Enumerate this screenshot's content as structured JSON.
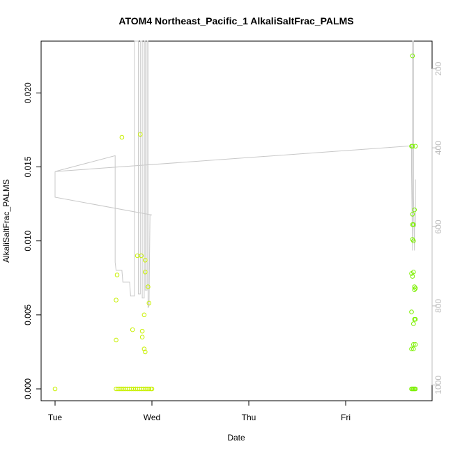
{
  "chart_data": {
    "type": "scatter",
    "title": "ATOM4 Northeast_Pacific_1 AlkaliSaltFrac_PALMS",
    "xlabel": "Date",
    "ylabel": "AlkaliSaltFrac_PALMS",
    "x_ticks": [
      "Tue",
      "Wed",
      "Thu",
      "Fri"
    ],
    "x_range_days": [
      -0.15,
      3.85
    ],
    "y_ticks": [
      "0.000",
      "0.005",
      "0.010",
      "0.015",
      "0.020"
    ],
    "ylim": [
      -0.0008,
      0.0235
    ],
    "right_axis": {
      "ticks": [
        "200",
        "400",
        "600",
        "800",
        "1000"
      ],
      "range": [
        1040,
        130
      ],
      "color": "#bdbdbd"
    },
    "colors": {
      "points_wed": "#c8f000",
      "points_fri": "#7cf000",
      "altitude_line": "#c8c8c8"
    },
    "series": [
      {
        "points": [
          [
            0.0,
            0.0
          ],
          [
            0.63,
            0.0033
          ],
          [
            0.63,
            0.006
          ],
          [
            0.64,
            0.0077
          ],
          [
            0.69,
            0.017
          ],
          [
            0.8,
            0.004
          ],
          [
            0.85,
            0.009
          ],
          [
            0.88,
            0.0172
          ],
          [
            0.89,
            0.009
          ],
          [
            0.9,
            0.0039
          ],
          [
            0.9,
            0.0035
          ],
          [
            0.92,
            0.005
          ],
          [
            0.92,
            0.0027
          ],
          [
            0.93,
            0.0025
          ],
          [
            0.93,
            0.0087
          ],
          [
            0.93,
            0.0079
          ],
          [
            0.96,
            0.0069
          ],
          [
            0.97,
            0.0058
          ],
          [
            0.63,
            0.0
          ],
          [
            0.65,
            0.0
          ],
          [
            0.67,
            0.0
          ],
          [
            0.69,
            0.0
          ],
          [
            0.71,
            0.0
          ],
          [
            0.73,
            0.0
          ],
          [
            0.75,
            0.0
          ],
          [
            0.77,
            0.0
          ],
          [
            0.79,
            0.0
          ],
          [
            0.81,
            0.0
          ],
          [
            0.83,
            0.0
          ],
          [
            0.85,
            0.0
          ],
          [
            0.87,
            0.0
          ],
          [
            0.89,
            0.0
          ],
          [
            0.91,
            0.0
          ],
          [
            0.93,
            0.0
          ],
          [
            0.95,
            0.0
          ],
          [
            0.97,
            0.0
          ],
          [
            0.99,
            0.0
          ],
          [
            1.0,
            0.0
          ]
        ]
      },
      {
        "points": [
          [
            3.69,
            0.0225
          ],
          [
            3.68,
            0.0164
          ],
          [
            3.69,
            0.0164
          ],
          [
            3.72,
            0.0164
          ],
          [
            3.71,
            0.0121
          ],
          [
            3.69,
            0.0118
          ],
          [
            3.69,
            0.0111
          ],
          [
            3.7,
            0.0111
          ],
          [
            3.69,
            0.0101
          ],
          [
            3.7,
            0.01
          ],
          [
            3.68,
            0.0078
          ],
          [
            3.69,
            0.0076
          ],
          [
            3.7,
            0.0079
          ],
          [
            3.71,
            0.0069
          ],
          [
            3.71,
            0.0067
          ],
          [
            3.72,
            0.0068
          ],
          [
            3.68,
            0.0052
          ],
          [
            3.71,
            0.0047
          ],
          [
            3.72,
            0.0047
          ],
          [
            3.7,
            0.0044
          ],
          [
            3.68,
            0.0027
          ],
          [
            3.7,
            0.0027
          ],
          [
            3.7,
            0.003
          ],
          [
            3.72,
            0.003
          ],
          [
            3.68,
            0.0
          ],
          [
            3.69,
            0.0
          ],
          [
            3.7,
            0.0
          ],
          [
            3.71,
            0.0
          ],
          [
            3.72,
            0.0
          ]
        ]
      }
    ],
    "altitude_line": [
      [
        0.0,
        460
      ],
      [
        0.0,
        525
      ],
      [
        1.0,
        570
      ],
      [
        0.98,
        570
      ],
      [
        0.97,
        800
      ],
      [
        0.96,
        805
      ],
      [
        0.96,
        130
      ],
      [
        0.95,
        130
      ],
      [
        0.95,
        760
      ],
      [
        0.93,
        760
      ],
      [
        0.93,
        130
      ],
      [
        0.92,
        130
      ],
      [
        0.92,
        780
      ],
      [
        0.9,
        780
      ],
      [
        0.9,
        130
      ],
      [
        0.88,
        130
      ],
      [
        0.88,
        770
      ],
      [
        0.86,
        770
      ],
      [
        0.86,
        130
      ],
      [
        0.82,
        130
      ],
      [
        0.82,
        775
      ],
      [
        0.78,
        775
      ],
      [
        0.77,
        740
      ],
      [
        0.7,
        740
      ],
      [
        0.69,
        710
      ],
      [
        0.63,
        710
      ],
      [
        0.62,
        690
      ],
      [
        0.62,
        420
      ],
      [
        0.0,
        460
      ],
      [
        3.68,
        395
      ],
      [
        3.68,
        460
      ],
      [
        3.69,
        660
      ],
      [
        3.69,
        130
      ],
      [
        3.7,
        130
      ],
      [
        3.7,
        520
      ],
      [
        3.71,
        660
      ],
      [
        3.71,
        590
      ],
      [
        3.72,
        600
      ],
      [
        3.72,
        480
      ]
    ]
  }
}
